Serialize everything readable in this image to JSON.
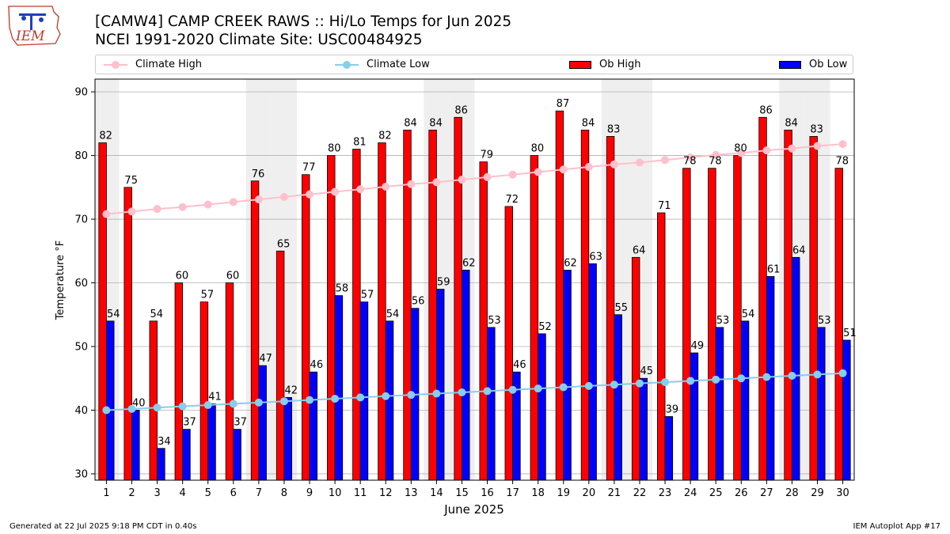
{
  "header": {
    "title_line1": "[CAMW4] CAMP CREEK RAWS :: Hi/Lo Temps for Jun 2025",
    "title_line2": "NCEI 1991-2020 Climate Site: USC00484925",
    "logo_text": "IEM"
  },
  "legend": {
    "climate_high": "Climate High",
    "climate_low": "Climate Low",
    "ob_high": "Ob High",
    "ob_low": "Ob Low"
  },
  "colors": {
    "ob_high": "#ff0000",
    "ob_low": "#0000ff",
    "climate_high": "#ffc0cb",
    "climate_low": "#87ceeb",
    "weekend_band": "#efefef",
    "grid": "#b0b0b0"
  },
  "chart_data": {
    "type": "bar",
    "xlabel": "June 2025",
    "ylabel": "Temperature °F",
    "ylim": [
      29,
      92
    ],
    "yticks": [
      30,
      40,
      50,
      60,
      70,
      80,
      90
    ],
    "grid": "horizontal",
    "legend_position": "top",
    "weekend_days": [
      1,
      7,
      8,
      14,
      15,
      21,
      22,
      28,
      29
    ],
    "categories": [
      "1",
      "2",
      "3",
      "4",
      "5",
      "6",
      "7",
      "8",
      "9",
      "10",
      "11",
      "12",
      "13",
      "14",
      "15",
      "16",
      "17",
      "18",
      "19",
      "20",
      "21",
      "22",
      "23",
      "24",
      "25",
      "26",
      "27",
      "28",
      "29",
      "30"
    ],
    "series": [
      {
        "name": "Ob High",
        "kind": "bar",
        "values": [
          82,
          75,
          54,
          60,
          57,
          60,
          76,
          65,
          77,
          80,
          81,
          82,
          84,
          84,
          86,
          79,
          72,
          80,
          87,
          84,
          83,
          64,
          71,
          78,
          78,
          80,
          86,
          84,
          83,
          78
        ]
      },
      {
        "name": "Ob Low",
        "kind": "bar",
        "values": [
          54,
          40,
          34,
          37,
          41,
          37,
          47,
          42,
          46,
          58,
          57,
          54,
          56,
          59,
          62,
          53,
          46,
          52,
          62,
          63,
          55,
          45,
          39,
          49,
          53,
          54,
          61,
          64,
          53,
          51
        ]
      },
      {
        "name": "Climate High",
        "kind": "line",
        "values": [
          70.8,
          71.2,
          71.6,
          71.9,
          72.3,
          72.7,
          73.1,
          73.5,
          73.9,
          74.3,
          74.7,
          75.1,
          75.5,
          75.8,
          76.2,
          76.6,
          77.0,
          77.4,
          77.8,
          78.2,
          78.6,
          78.9,
          79.3,
          79.7,
          80.1,
          80.4,
          80.8,
          81.1,
          81.5,
          81.8
        ]
      },
      {
        "name": "Climate Low",
        "kind": "line",
        "values": [
          40.0,
          40.2,
          40.4,
          40.6,
          40.8,
          41.0,
          41.2,
          41.4,
          41.6,
          41.8,
          42.0,
          42.2,
          42.4,
          42.6,
          42.8,
          43.0,
          43.2,
          43.4,
          43.6,
          43.8,
          44.0,
          44.2,
          44.4,
          44.6,
          44.8,
          45.0,
          45.2,
          45.4,
          45.6,
          45.8
        ]
      }
    ]
  },
  "footer": {
    "left": "Generated at 22 Jul 2025 9:18 PM CDT in 0.40s",
    "right": "IEM Autoplot App #17"
  }
}
